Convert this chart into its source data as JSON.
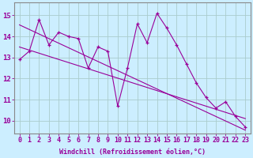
{
  "x": [
    0,
    1,
    2,
    3,
    4,
    5,
    6,
    7,
    8,
    9,
    10,
    11,
    12,
    13,
    14,
    15,
    16,
    17,
    18,
    19,
    20,
    21,
    22,
    23
  ],
  "y_data": [
    12.9,
    13.3,
    14.8,
    13.6,
    14.2,
    14.0,
    13.9,
    12.5,
    13.5,
    13.3,
    10.7,
    12.5,
    14.6,
    13.7,
    15.1,
    14.4,
    13.6,
    12.7,
    11.8,
    11.1,
    10.6,
    10.9,
    10.2,
    9.7
  ],
  "trend1_x": [
    0,
    23
  ],
  "trend1_y": [
    13.5,
    10.1
  ],
  "trend2_x": [
    0,
    23
  ],
  "trend2_y": [
    14.55,
    9.55
  ],
  "line_color": "#990099",
  "bg_color": "#cceeff",
  "grid_color": "#aacccc",
  "xlabel": "Windchill (Refroidissement éolien,°C)",
  "ylabel_ticks": [
    10,
    11,
    12,
    13,
    14,
    15
  ],
  "ylim": [
    9.4,
    15.6
  ],
  "xlim": [
    -0.5,
    23.5
  ],
  "tick_fontsize": 6,
  "xlabel_fontsize": 6
}
